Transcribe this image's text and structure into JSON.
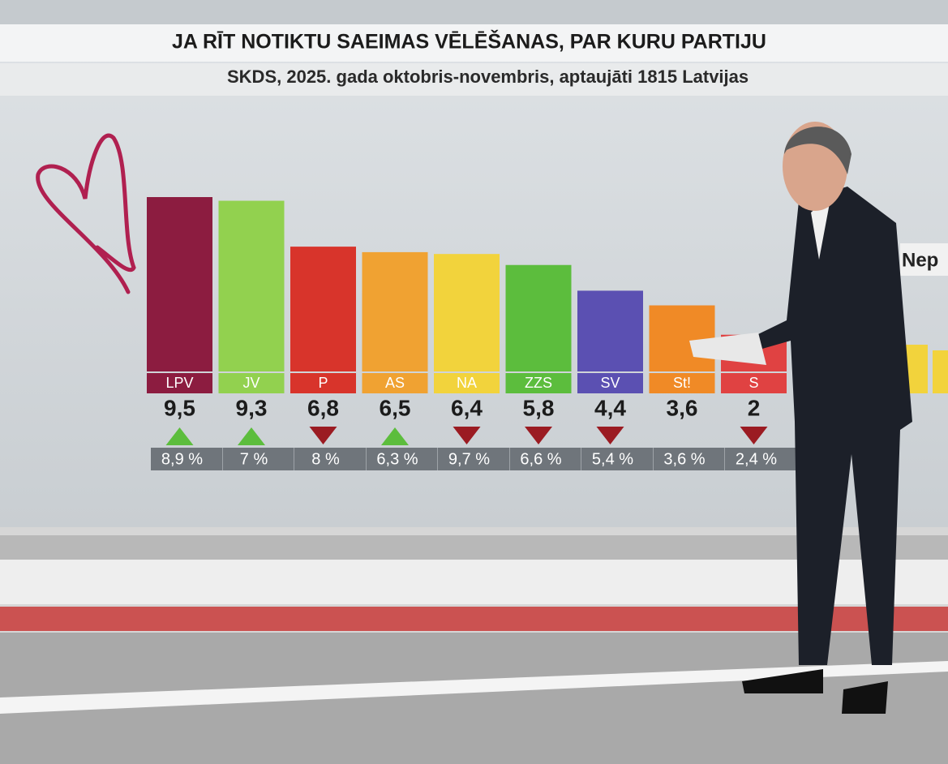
{
  "chart_data": {
    "type": "bar",
    "title": "JA RĪT NOTIKTU SAEIMAS VĒLĒŠANAS, PAR KURU PARTIJU",
    "subtitle": "SKDS, 2025. gada oktobris-novembris, aptaujāti 1815 Latvijas",
    "categories": [
      "LPV",
      "JV",
      "P",
      "AS",
      "NA",
      "ZZS",
      "SV",
      "St!",
      "S"
    ],
    "values": [
      9.5,
      9.3,
      6.8,
      6.5,
      6.4,
      5.8,
      4.4,
      3.6,
      2
    ],
    "value_labels": [
      "9,5",
      "9,3",
      "6,8",
      "6,5",
      "6,4",
      "5,8",
      "4,4",
      "3,6",
      "2"
    ],
    "previous_values": [
      8.9,
      7,
      8,
      6.3,
      9.7,
      6.6,
      5.4,
      3.6,
      2.4
    ],
    "previous_labels": [
      "8,9 %",
      "7 %",
      "8 %",
      "6,3 %",
      "9,7 %",
      "6,6 %",
      "5,4 %",
      "3,6 %",
      "2,4 %"
    ],
    "colors": [
      "#8c1c40",
      "#92d14f",
      "#d8342b",
      "#f0a232",
      "#f2d33c",
      "#5cbd3d",
      "#5b50b2",
      "#f08a26",
      "#e04242"
    ],
    "up_color": "#5cbd3d",
    "down_color": "#9b1b22",
    "partial_label": "Nep"
  }
}
